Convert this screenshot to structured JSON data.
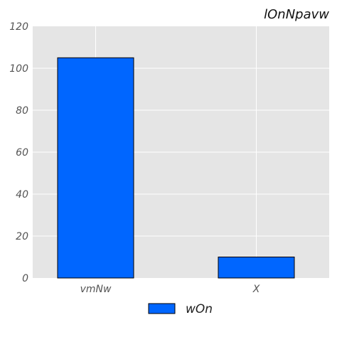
{
  "chart_data": {
    "type": "bar",
    "title": "lOnNpavw",
    "categories": [
      "vmNw",
      "X"
    ],
    "series": [
      {
        "name": "wOn",
        "values": [
          105,
          10
        ],
        "color": "#0066ff"
      }
    ],
    "ylim": [
      0,
      120
    ],
    "yticks": [
      0,
      20,
      40,
      60,
      80,
      100,
      120
    ],
    "grid": true,
    "legend_position": "bottom-center",
    "background": "#e5e5e5",
    "gridline_color": "#ffffff"
  }
}
